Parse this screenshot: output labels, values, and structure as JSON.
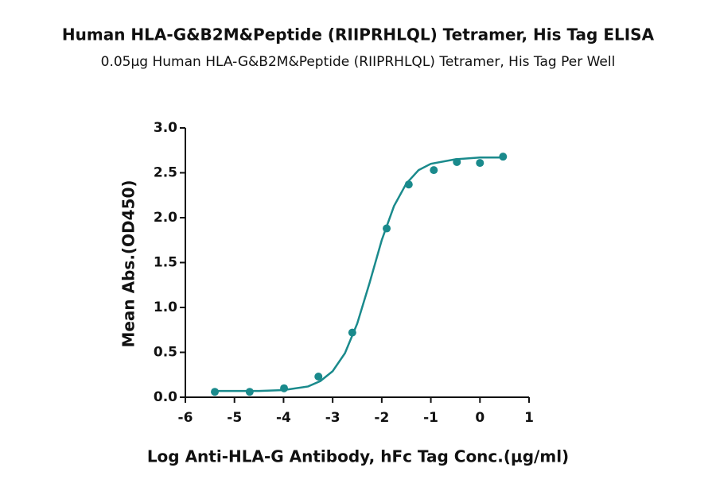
{
  "chart_data": {
    "type": "scatter",
    "title": "Human HLA-G&B2M&Peptide (RIIPRHLQL) Tetramer, His Tag ELISA",
    "subtitle": "0.05μg Human HLA-G&B2M&Peptide (RIIPRHLQL) Tetramer, His Tag Per Well",
    "x_label": "Log Anti-HLA-G Antibody, hFc Tag Conc.(μg/ml)",
    "y_label": "Mean Abs.(OD450)",
    "color": "#1a8a8c",
    "x": [
      -5.4,
      -4.69,
      -3.99,
      -3.29,
      -2.6,
      -1.9,
      -1.45,
      -0.94,
      -0.47,
      0.0,
      0.47
    ],
    "values": [
      0.06,
      0.06,
      0.1,
      0.23,
      0.72,
      1.88,
      2.37,
      2.53,
      2.62,
      2.61,
      2.68
    ],
    "fit": {
      "x": [
        -5.4,
        -5,
        -4.5,
        -4,
        -3.5,
        -3.25,
        -3,
        -2.75,
        -2.5,
        -2.25,
        -2,
        -1.75,
        -1.5,
        -1.25,
        -1,
        -0.5,
        0,
        0.5
      ],
      "values": [
        0.07,
        0.07,
        0.07,
        0.08,
        0.12,
        0.18,
        0.29,
        0.49,
        0.82,
        1.27,
        1.75,
        2.13,
        2.38,
        2.53,
        2.6,
        2.65,
        2.67,
        2.67
      ]
    },
    "xlim": [
      -6,
      1
    ],
    "xticks": [
      -6,
      -5,
      -4,
      -3,
      -2,
      -1,
      0,
      1
    ],
    "ylim": [
      0,
      3
    ],
    "yticks": [
      {
        "value": 0,
        "label": "0.0"
      },
      0.5,
      {
        "value": 1,
        "label": "1.0"
      },
      1.5,
      {
        "value": 2,
        "label": "2.0"
      },
      2.5,
      {
        "value": 3,
        "label": "3.0"
      }
    ]
  }
}
